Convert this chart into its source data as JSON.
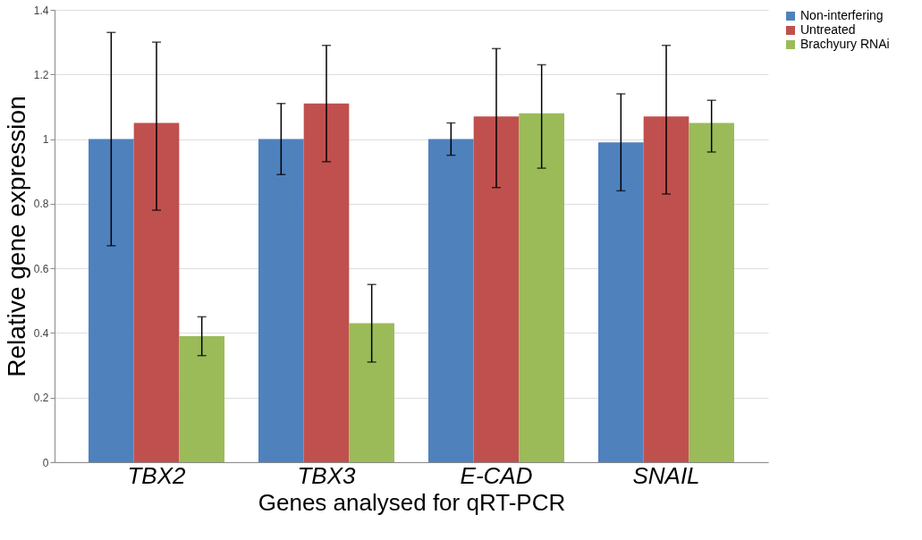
{
  "chart_data": {
    "type": "bar",
    "xlabel": "Genes analysed for qRT-PCR",
    "ylabel": "Relative gene expression",
    "categories": [
      "TBX2",
      "TBX3",
      "E-CAD",
      "SNAIL"
    ],
    "series": [
      {
        "name": "Non-interfering",
        "color": "#4f81bd",
        "values": [
          1.0,
          1.0,
          1.0,
          0.99
        ],
        "errors": [
          [
            0.67,
            1.33
          ],
          [
            0.89,
            1.11
          ],
          [
            0.95,
            1.05
          ],
          [
            0.84,
            1.14
          ]
        ]
      },
      {
        "name": "Untreated",
        "color": "#c0504d",
        "values": [
          1.05,
          1.11,
          1.07,
          1.07
        ],
        "errors": [
          [
            0.78,
            1.3
          ],
          [
            0.93,
            1.29
          ],
          [
            0.85,
            1.28
          ],
          [
            0.83,
            1.29
          ]
        ]
      },
      {
        "name": "Brachyury RNAi",
        "color": "#9bbb59",
        "values": [
          0.39,
          0.43,
          1.08,
          1.05
        ],
        "errors": [
          [
            0.33,
            0.45
          ],
          [
            0.31,
            0.55
          ],
          [
            0.91,
            1.23
          ],
          [
            0.96,
            1.12
          ]
        ]
      }
    ],
    "ylim": [
      0,
      1.4
    ],
    "yticks": [
      0,
      0.2,
      0.4,
      0.6,
      0.8,
      1,
      1.2,
      1.4
    ],
    "grid": "y",
    "legend": "right"
  }
}
